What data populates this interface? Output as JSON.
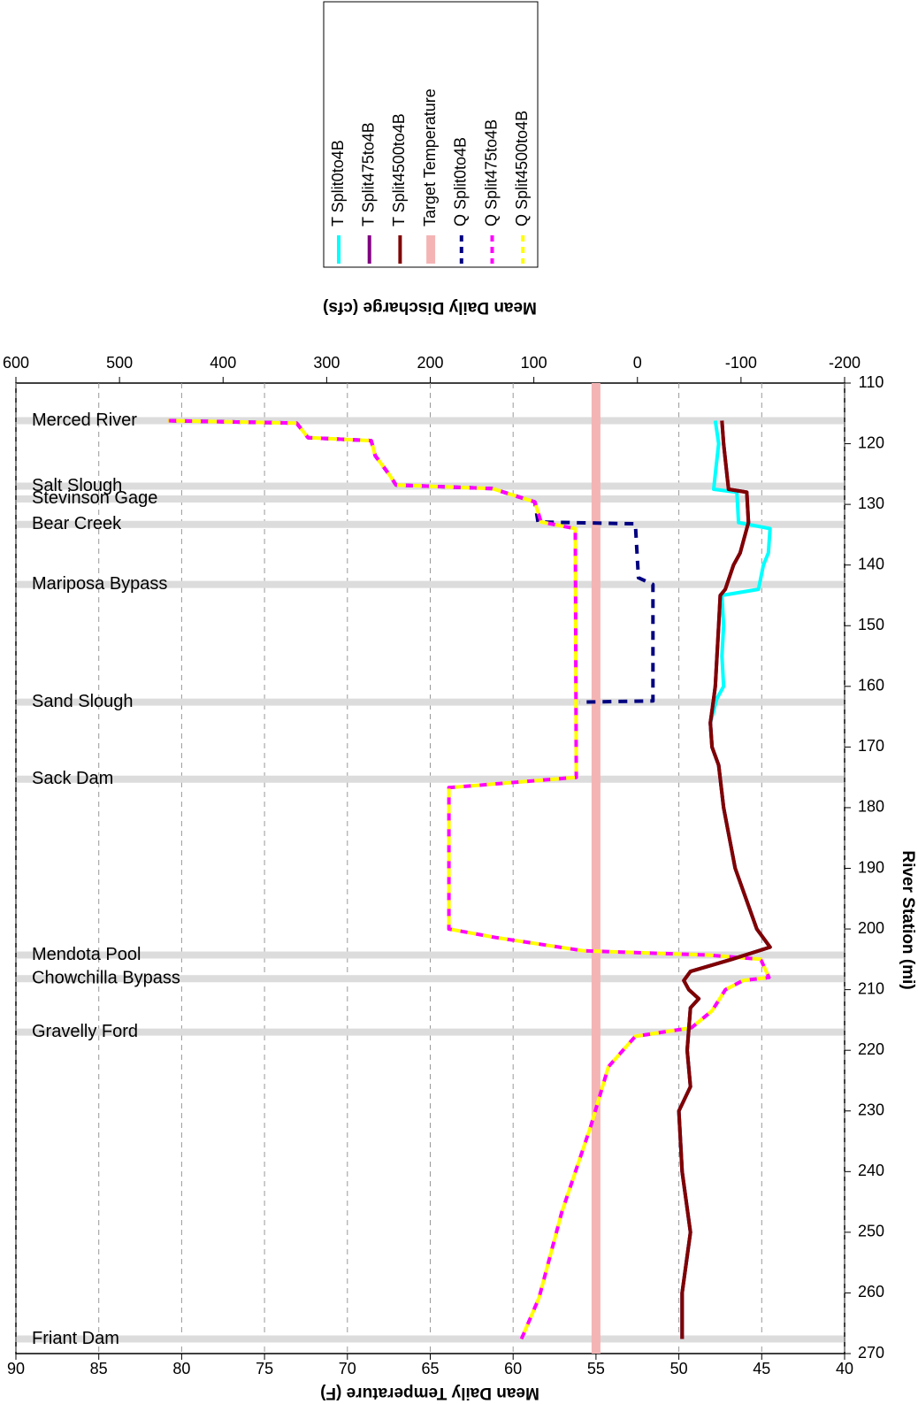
{
  "chart_data": {
    "type": "line",
    "x_label": "River Station (mi)",
    "y_label": "Mean Daily Temperature (F)",
    "y2_label": "Mean Daily Discharge (cfs)",
    "xlim": [
      110,
      270
    ],
    "xticks": [
      110,
      120,
      130,
      140,
      150,
      160,
      170,
      180,
      190,
      200,
      210,
      220,
      230,
      240,
      250,
      260,
      270
    ],
    "ylim": [
      40,
      90
    ],
    "yticks": [
      40,
      45,
      50,
      55,
      60,
      65,
      70,
      75,
      80,
      85,
      90
    ],
    "y2lim": [
      -200,
      600
    ],
    "y2ticks": [
      -200,
      -100,
      0,
      100,
      200,
      300,
      400,
      500,
      600
    ],
    "grid": true,
    "annotations": [
      {
        "label": "Merced River",
        "x": 116.2
      },
      {
        "label": "Salt Slough",
        "x": 127
      },
      {
        "label": "Stevinson Gage",
        "x": 129.1
      },
      {
        "label": "Bear Creek",
        "x": 133.3
      },
      {
        "label": "Mariposa Bypass",
        "x": 143.2
      },
      {
        "label": "Sand Slough",
        "x": 162.6
      },
      {
        "label": "Sack Dam",
        "x": 175.3
      },
      {
        "label": "Mendota Pool",
        "x": 204.3
      },
      {
        "label": "Chowchilla Bypass",
        "x": 208.2
      },
      {
        "label": "Gravelly Ford",
        "x": 217
      },
      {
        "label": "Friant Dam",
        "x": 267.6
      }
    ],
    "series": [
      {
        "name": "T Split0to4B",
        "color": "#00ffff",
        "style": "solid",
        "x": [
          116.2,
          120,
          125,
          127.5,
          128,
          133,
          134,
          138,
          140,
          144,
          145,
          150,
          155,
          160,
          162,
          166,
          170,
          173,
          180,
          190,
          200,
          203,
          205,
          207,
          208.5,
          210,
          211.5,
          213,
          220,
          226,
          230,
          240,
          250,
          260,
          267.6
        ],
        "values": [
          47.8,
          47.6,
          47.8,
          47.9,
          46.5,
          46.4,
          44.5,
          44.6,
          44.9,
          45.2,
          47.4,
          47.3,
          47.4,
          47.3,
          47.7,
          48.1,
          48.0,
          47.6,
          47.3,
          46.6,
          45.3,
          44.5,
          46.8,
          49.3,
          49.7,
          49.4,
          48.8,
          49.3,
          49.5,
          49.3,
          50.0,
          49.8,
          49.3,
          49.8,
          49.8
        ]
      },
      {
        "name": "T Split475to4B",
        "color": "#800080",
        "style": "solid",
        "x": [
          116.2,
          120,
          125,
          127.5,
          128,
          133,
          134,
          138,
          140,
          144,
          145,
          150,
          155,
          160,
          162,
          166,
          170,
          173,
          180,
          190,
          200,
          203,
          205,
          207,
          208.5,
          210,
          211.5,
          213,
          220,
          226,
          230,
          240,
          250,
          260,
          267.6
        ],
        "values": [
          47.4,
          47.3,
          47.1,
          47.0,
          45.9,
          45.8,
          45.9,
          46.3,
          46.7,
          47.2,
          47.5,
          47.6,
          47.7,
          47.8,
          47.9,
          48.1,
          48.0,
          47.6,
          47.3,
          46.6,
          45.3,
          44.5,
          46.8,
          49.3,
          49.7,
          49.4,
          48.8,
          49.3,
          49.5,
          49.3,
          50.0,
          49.8,
          49.3,
          49.8,
          49.8
        ]
      },
      {
        "name": "T Split4500to4B",
        "color": "#800000",
        "style": "solid",
        "x": [
          116.2,
          120,
          125,
          127.5,
          128,
          133,
          134,
          138,
          140,
          144,
          145,
          150,
          155,
          160,
          162,
          166,
          170,
          173,
          180,
          190,
          200,
          203,
          205,
          207,
          208.5,
          210,
          211.5,
          213,
          220,
          226,
          230,
          240,
          250,
          260,
          267.6
        ],
        "values": [
          47.4,
          47.3,
          47.1,
          47.0,
          45.9,
          45.8,
          45.9,
          46.3,
          46.7,
          47.2,
          47.5,
          47.6,
          47.7,
          47.8,
          47.9,
          48.1,
          48.0,
          47.6,
          47.3,
          46.6,
          45.3,
          44.5,
          46.8,
          49.3,
          49.7,
          49.4,
          48.8,
          49.3,
          49.5,
          49.3,
          50.0,
          49.8,
          49.3,
          49.8,
          49.8
        ]
      },
      {
        "name": "Target Temperature",
        "color": "#f4b4b4",
        "style": "thick",
        "x": [
          110,
          270
        ],
        "values": [
          55,
          55
        ]
      },
      {
        "name": "Q Split0to4B",
        "color": "#000080",
        "style": "dash",
        "axis": "y2",
        "x": [
          116.2,
          116.6,
          119,
          119.5,
          122,
          125,
          126.8,
          127.4,
          129.6,
          132.9,
          133.2,
          142.1,
          143.2,
          162.4,
          162.6
        ],
        "values": [
          453,
          329,
          318,
          257,
          253,
          240,
          233,
          140,
          99,
          96,
          2,
          -1,
          -15,
          -15,
          56
        ]
      },
      {
        "name": "Q Split475to4B",
        "color": "#ff00ff",
        "style": "dash",
        "axis": "y2",
        "x": [
          116.2,
          116.6,
          119,
          119.5,
          122,
          125,
          126.8,
          127.4,
          129.6,
          132.9,
          134,
          175,
          176.7,
          200,
          201.4,
          203.6,
          204.3,
          205,
          208,
          208.5,
          210,
          213.5,
          216.3,
          217.7,
          222.7,
          232.5,
          246.7,
          260.8,
          267.6
        ],
        "values": [
          453,
          329,
          318,
          257,
          253,
          240,
          233,
          140,
          99,
          93,
          60,
          59,
          182,
          182,
          137,
          52,
          -68,
          -119,
          -127,
          -102,
          -85,
          -72,
          -52,
          2,
          28,
          45,
          73,
          95,
          112
        ]
      },
      {
        "name": "Q Split4500to4B",
        "color": "#ffff00",
        "style": "dash",
        "axis": "y2",
        "x": [
          116.2,
          116.6,
          119,
          119.5,
          122,
          125,
          126.8,
          127.4,
          129.6,
          132.9,
          134,
          175,
          176.7,
          200,
          201.4,
          203.6,
          204.3,
          205,
          208,
          208.5,
          210,
          213.5,
          216.3,
          217.7,
          222.7,
          232.5,
          246.7,
          260.8,
          267.6
        ],
        "values": [
          453,
          329,
          318,
          257,
          253,
          240,
          233,
          140,
          99,
          93,
          60,
          59,
          182,
          182,
          137,
          52,
          -68,
          -119,
          -127,
          -102,
          -85,
          -72,
          -52,
          2,
          28,
          45,
          73,
          95,
          112
        ]
      }
    ]
  }
}
